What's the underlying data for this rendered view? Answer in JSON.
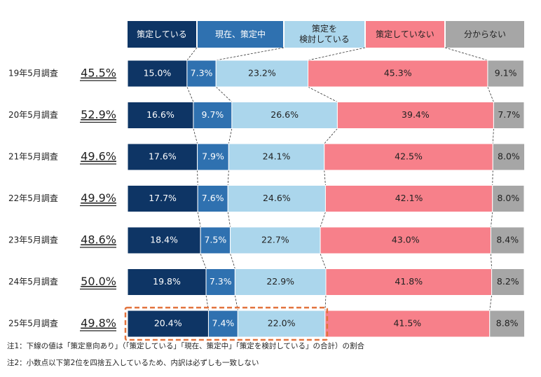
{
  "chart_data": {
    "type": "stacked-bar-100",
    "categories": [
      "19年5月調査",
      "20年5月調査",
      "21年5月調査",
      "22年5月調査",
      "23年5月調査",
      "24年5月調査",
      "25年5月調査"
    ],
    "xlim": [
      0,
      100
    ],
    "series": [
      {
        "name": "策定している",
        "color": "#0e3565",
        "label_color": "#ffffff",
        "values": [
          15.0,
          16.6,
          17.6,
          17.7,
          18.4,
          19.8,
          20.4
        ],
        "value_labels": [
          "15.0%",
          "16.6%",
          "17.6%",
          "17.7%",
          "18.4%",
          "19.8%",
          "20.4%"
        ]
      },
      {
        "name": "現在、策定中",
        "color": "#2f71b0",
        "label_color": "#ffffff",
        "values": [
          7.3,
          9.7,
          7.9,
          7.6,
          7.5,
          7.3,
          7.4
        ],
        "value_labels": [
          "7.3%",
          "9.7%",
          "7.9%",
          "7.6%",
          "7.5%",
          "7.3%",
          "7.4%"
        ]
      },
      {
        "name": "策定を\n検討している",
        "color": "#abd6ec",
        "label_color": "#222222",
        "values": [
          23.2,
          26.6,
          24.1,
          24.6,
          22.7,
          22.9,
          22.0
        ],
        "value_labels": [
          "23.2%",
          "26.6%",
          "24.1%",
          "24.6%",
          "22.7%",
          "22.9%",
          "22.0%"
        ]
      },
      {
        "name": "策定していない",
        "color": "#f7808a",
        "label_color": "#222222",
        "values": [
          45.3,
          39.4,
          42.5,
          42.1,
          43.0,
          41.8,
          41.5
        ],
        "value_labels": [
          "45.3%",
          "39.4%",
          "42.5%",
          "42.1%",
          "43.0%",
          "41.8%",
          "41.5%"
        ]
      },
      {
        "name": "分からない",
        "color": "#a6a6a6",
        "label_color": "#222222",
        "values": [
          9.1,
          7.7,
          8.0,
          8.0,
          8.4,
          8.2,
          8.8
        ],
        "value_labels": [
          "9.1%",
          "7.7%",
          "8.0%",
          "8.0%",
          "8.4%",
          "8.2%",
          "8.8%"
        ]
      }
    ],
    "summary": {
      "values": [
        45.5,
        52.9,
        49.6,
        49.9,
        48.6,
        50.0,
        49.8
      ],
      "value_labels": [
        "45.5%",
        "52.9%",
        "49.6%",
        "49.9%",
        "48.6%",
        "50.0%",
        "49.8%"
      ]
    },
    "notes": [
      "注1：下線の値は「策定意向あり」（「策定している」「現在、策定中」「策定を検討している」の合計）の割合",
      "注2：小数点以下第2位を四捨五入しているため、内訳は必ずしも一致しない"
    ]
  }
}
